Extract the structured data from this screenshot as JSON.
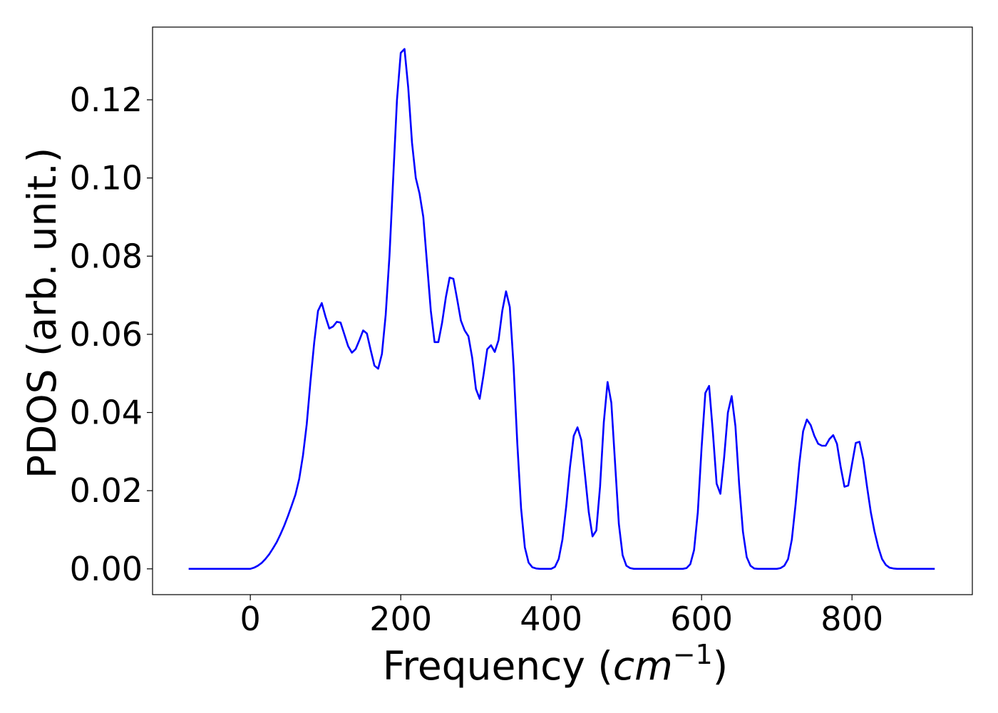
{
  "chart_data": {
    "type": "line",
    "xlabel": "Frequency (",
    "xlabel_math": "cm",
    "xlabel_sup": "−1",
    "xlabel_close": ")",
    "ylabel": "PDOS (arb. unit.)",
    "xlim": [
      -130,
      960
    ],
    "ylim": [
      -0.0066,
      0.1386
    ],
    "xticks": [
      0,
      200,
      400,
      600,
      800
    ],
    "xtick_labels": [
      "0",
      "200",
      "400",
      "600",
      "800"
    ],
    "yticks": [
      0.0,
      0.02,
      0.04,
      0.06,
      0.08,
      0.1,
      0.12
    ],
    "ytick_labels": [
      "0.00",
      "0.02",
      "0.04",
      "0.06",
      "0.08",
      "0.10",
      "0.12"
    ],
    "grid": false,
    "legend": "none",
    "series": [
      {
        "color": "#0000ff",
        "x": [
          -82,
          0,
          5,
          10,
          15,
          20,
          25,
          30,
          35,
          40,
          45,
          50,
          55,
          60,
          65,
          70,
          75,
          80,
          85,
          90,
          95,
          100,
          105,
          110,
          115,
          120,
          125,
          130,
          135,
          140,
          145,
          150,
          155,
          160,
          165,
          170,
          175,
          180,
          185,
          190,
          195,
          200,
          205,
          210,
          215,
          220,
          225,
          230,
          235,
          240,
          245,
          250,
          255,
          260,
          265,
          270,
          275,
          280,
          285,
          290,
          295,
          300,
          305,
          310,
          315,
          320,
          325,
          330,
          335,
          340,
          345,
          350,
          355,
          360,
          365,
          370,
          375,
          380,
          385,
          390,
          395,
          400,
          405,
          410,
          415,
          420,
          425,
          430,
          435,
          440,
          445,
          450,
          455,
          460,
          465,
          470,
          475,
          480,
          485,
          490,
          495,
          500,
          505,
          510,
          515,
          520,
          525,
          530,
          535,
          540,
          545,
          550,
          555,
          560,
          565,
          570,
          575,
          580,
          585,
          590,
          595,
          600,
          605,
          610,
          615,
          620,
          625,
          630,
          635,
          640,
          645,
          650,
          655,
          660,
          665,
          670,
          675,
          680,
          685,
          690,
          695,
          700,
          705,
          710,
          715,
          720,
          725,
          730,
          735,
          740,
          745,
          750,
          755,
          760,
          765,
          770,
          775,
          780,
          785,
          790,
          795,
          800,
          805,
          810,
          815,
          820,
          825,
          830,
          835,
          840,
          845,
          850,
          855,
          860,
          865,
          870,
          875,
          880,
          885,
          890,
          895,
          910
        ],
        "y": [
          0.0,
          0.0,
          0.0003,
          0.0008,
          0.0015,
          0.0025,
          0.0037,
          0.0052,
          0.0068,
          0.0088,
          0.011,
          0.0135,
          0.0162,
          0.019,
          0.023,
          0.029,
          0.037,
          0.048,
          0.058,
          0.066,
          0.068,
          0.0645,
          0.0615,
          0.062,
          0.0632,
          0.063,
          0.06,
          0.057,
          0.0553,
          0.0562,
          0.0585,
          0.061,
          0.0602,
          0.056,
          0.052,
          0.0512,
          0.055,
          0.065,
          0.08,
          0.1,
          0.12,
          0.132,
          0.133,
          0.123,
          0.109,
          0.1,
          0.096,
          0.09,
          0.078,
          0.066,
          0.058,
          0.058,
          0.063,
          0.0695,
          0.0745,
          0.0742,
          0.069,
          0.0635,
          0.061,
          0.0595,
          0.054,
          0.046,
          0.0435,
          0.0495,
          0.0562,
          0.0572,
          0.0555,
          0.0585,
          0.066,
          0.071,
          0.067,
          0.052,
          0.032,
          0.0155,
          0.0055,
          0.0016,
          0.0004,
          0.0001,
          0.0,
          0.0,
          0.0,
          0.0,
          0.0005,
          0.0025,
          0.0075,
          0.016,
          0.026,
          0.034,
          0.0362,
          0.033,
          0.024,
          0.0145,
          0.0083,
          0.0098,
          0.021,
          0.0375,
          0.0478,
          0.0425,
          0.027,
          0.0115,
          0.0035,
          0.0008,
          0.0002,
          0.0,
          0.0,
          0.0,
          0.0,
          0.0,
          0.0,
          0.0,
          0.0,
          0.0,
          0.0,
          0.0,
          0.0,
          0.0,
          0.0,
          0.0002,
          0.0012,
          0.0048,
          0.0145,
          0.031,
          0.045,
          0.0468,
          0.035,
          0.0218,
          0.0192,
          0.0285,
          0.04,
          0.0442,
          0.0365,
          0.0215,
          0.0095,
          0.003,
          0.0008,
          0.0001,
          0.0,
          0.0,
          0.0,
          0.0,
          0.0,
          0.0,
          0.0002,
          0.0008,
          0.0025,
          0.0075,
          0.0165,
          0.027,
          0.0352,
          0.0382,
          0.0368,
          0.034,
          0.032,
          0.0315,
          0.0315,
          0.0332,
          0.0342,
          0.032,
          0.026,
          0.021,
          0.0213,
          0.0268,
          0.0322,
          0.0325,
          0.028,
          0.021,
          0.0145,
          0.0095,
          0.0055,
          0.0025,
          0.001,
          0.0003,
          0.0001,
          0.0,
          0.0,
          0.0,
          0.0,
          0.0,
          0.0,
          0.0,
          0.0,
          0.0
        ]
      }
    ]
  }
}
